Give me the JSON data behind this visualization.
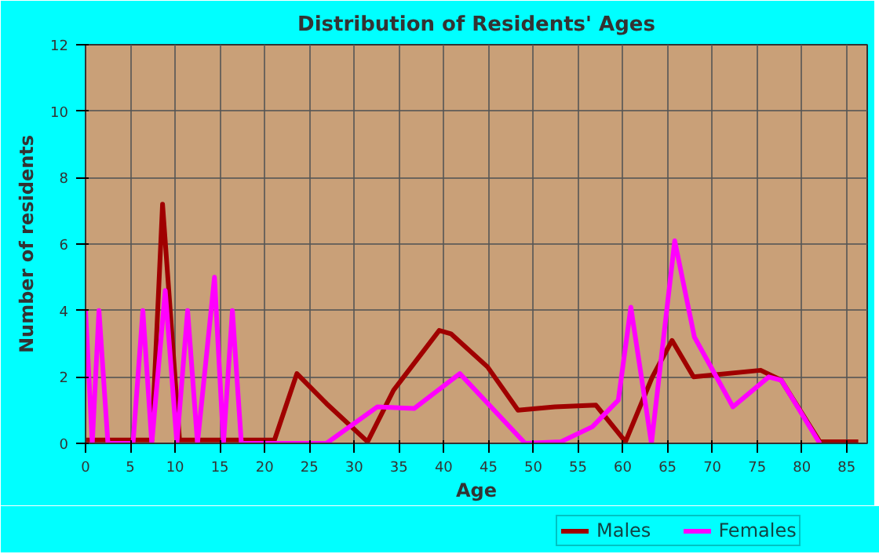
{
  "chart_data": {
    "type": "line",
    "title": "Distribution of Residents' Ages",
    "xlabel": "Age",
    "ylabel": "Number of residents",
    "xlim": [
      0,
      87.3
    ],
    "xticks": [
      0,
      5,
      10,
      15,
      20,
      25,
      30,
      35,
      40,
      45,
      50,
      55,
      60,
      65,
      70,
      75,
      80,
      85
    ],
    "ylim": [
      0,
      12
    ],
    "yticks": [
      0,
      2,
      4,
      6,
      8,
      10,
      12
    ],
    "grid": true,
    "legend": "bottom",
    "marker": "none",
    "line_style": "solid",
    "series": [
      {
        "name": "Males",
        "color": "#a00000",
        "x": [
          0,
          6.5,
          7.4,
          8.6,
          10.5,
          21.1,
          23.6,
          26.9,
          31.5,
          34.4,
          39.5,
          40.8,
          44.9,
          48.3,
          52.4,
          57,
          60.3,
          63.3,
          65.5,
          67.9,
          75.4,
          77.7,
          82,
          86.3
        ],
        "values": [
          0.1,
          0.1,
          0.1,
          7.2,
          0.1,
          0.1,
          2.1,
          1.2,
          0.05,
          1.6,
          3.4,
          3.3,
          2.3,
          1.0,
          1.1,
          1.15,
          0.05,
          2.0,
          3.1,
          2.0,
          2.2,
          1.9,
          0.05,
          0.05
        ]
      },
      {
        "name": "Females",
        "color": "#ff00ff",
        "x": [
          0,
          0.75,
          1.5,
          2.5,
          5.3,
          6.4,
          7.4,
          8.9,
          10.2,
          11.4,
          12.5,
          14.4,
          15.4,
          16.4,
          17.4,
          26.9,
          32.6,
          36.7,
          41.8,
          49.1,
          53.1,
          56.6,
          59.5,
          60.9,
          63.2,
          65.8,
          68,
          72.3,
          76.3,
          77.7,
          82
        ],
        "values": [
          4.0,
          0,
          4.0,
          0,
          0,
          4.0,
          0,
          4.6,
          0,
          4.0,
          0,
          5.0,
          0,
          4.0,
          0,
          0,
          1.1,
          1.05,
          2.1,
          0,
          0.05,
          0.5,
          1.3,
          4.1,
          0,
          6.1,
          3.2,
          1.1,
          2.0,
          1.9,
          0
        ]
      }
    ]
  }
}
